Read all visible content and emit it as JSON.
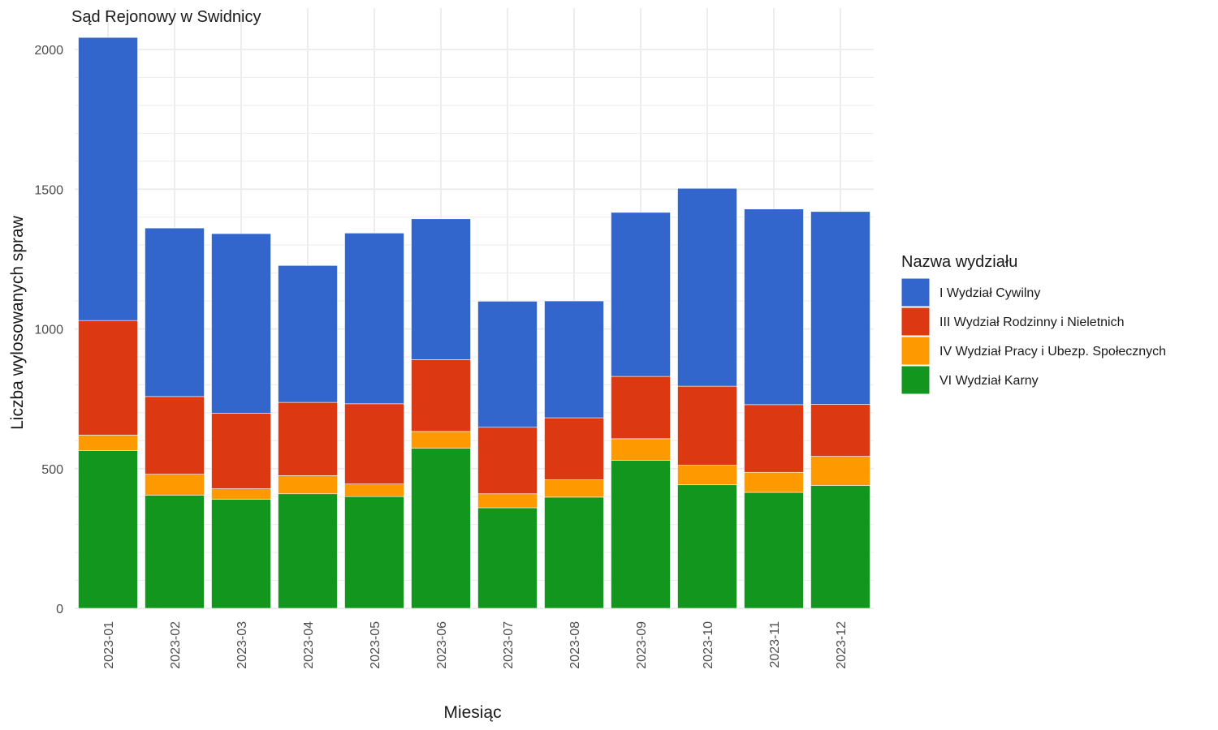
{
  "chart_data": {
    "type": "bar",
    "stacked": true,
    "title": "Sąd Rejonowy w Swidnicy",
    "xlabel": "Miesiąc",
    "ylabel": "Liczba wylosowanych spraw",
    "ylim": [
      0,
      2050
    ],
    "yticks": [
      0,
      500,
      1000,
      1500,
      2000
    ],
    "grid": true,
    "legend_position": "right",
    "legend_title": "Nazwa wydziału",
    "categories": [
      "2023-01",
      "2023-02",
      "2023-03",
      "2023-04",
      "2023-05",
      "2023-06",
      "2023-07",
      "2023-08",
      "2023-09",
      "2023-10",
      "2023-11",
      "2023-12"
    ],
    "series": [
      {
        "name": "VI Wydział Karny",
        "color": "#13961d",
        "values": [
          565,
          405,
          390,
          410,
          400,
          573,
          360,
          398,
          530,
          442,
          415,
          440
        ]
      },
      {
        "name": "IV Wydział Pracy i Ubezp. Społecznych",
        "color": "#ff9900",
        "values": [
          55,
          75,
          38,
          65,
          45,
          60,
          50,
          62,
          77,
          70,
          72,
          104
        ]
      },
      {
        "name": "III Wydział Rodzinny i Nieletnich",
        "color": "#dc3912",
        "values": [
          410,
          278,
          270,
          262,
          287,
          257,
          238,
          222,
          223,
          283,
          242,
          186
        ]
      },
      {
        "name": "I Wydział Cywilny",
        "color": "#3366cc",
        "values": [
          1013,
          603,
          643,
          490,
          611,
          504,
          451,
          418,
          587,
          708,
          700,
          690
        ]
      }
    ],
    "legend_order": [
      "I Wydział Cywilny",
      "III Wydział Rodzinny i Nieletnich",
      "IV Wydział Pracy i Ubezp. Społecznych",
      "VI Wydział Karny"
    ]
  }
}
